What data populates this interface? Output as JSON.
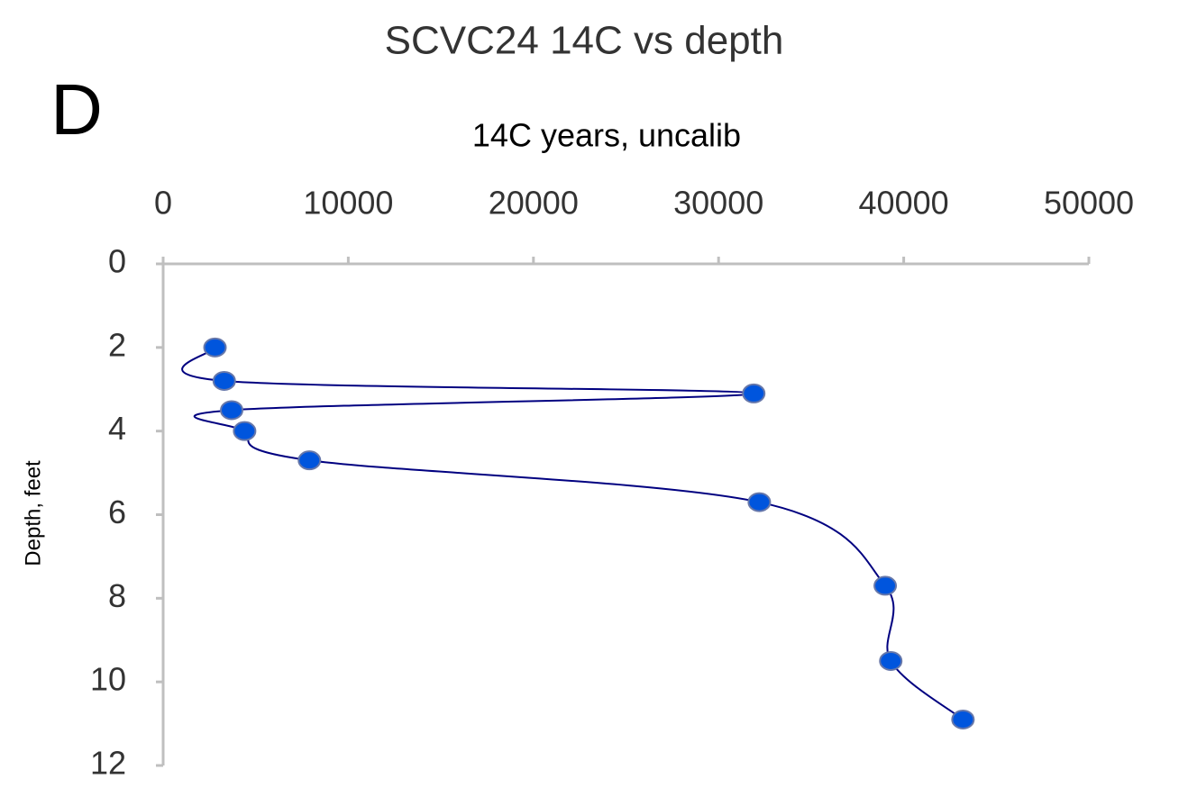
{
  "chart_data": {
    "type": "scatter",
    "title": "SCVC24 14C vs depth",
    "annotation": "D",
    "x_label": "14C years, uncalib",
    "y_label": "Depth, feet",
    "x": [
      2800,
      3300,
      31900,
      3700,
      4400,
      7900,
      32200,
      39000,
      39300,
      43200
    ],
    "values": [
      2.0,
      2.8,
      3.1,
      3.5,
      4.0,
      4.7,
      5.7,
      7.7,
      9.5,
      10.9
    ],
    "line_color": "#000080",
    "marker_color": "#0055dd",
    "smooth": true,
    "xlim": [
      0,
      50000
    ],
    "xticks": [
      0,
      10000,
      20000,
      30000,
      40000,
      50000
    ],
    "ylim": [
      0,
      12
    ],
    "yticks": [
      0,
      2,
      4,
      6,
      8,
      10,
      12
    ],
    "y_inverted": true,
    "x_axis_position": "top"
  }
}
